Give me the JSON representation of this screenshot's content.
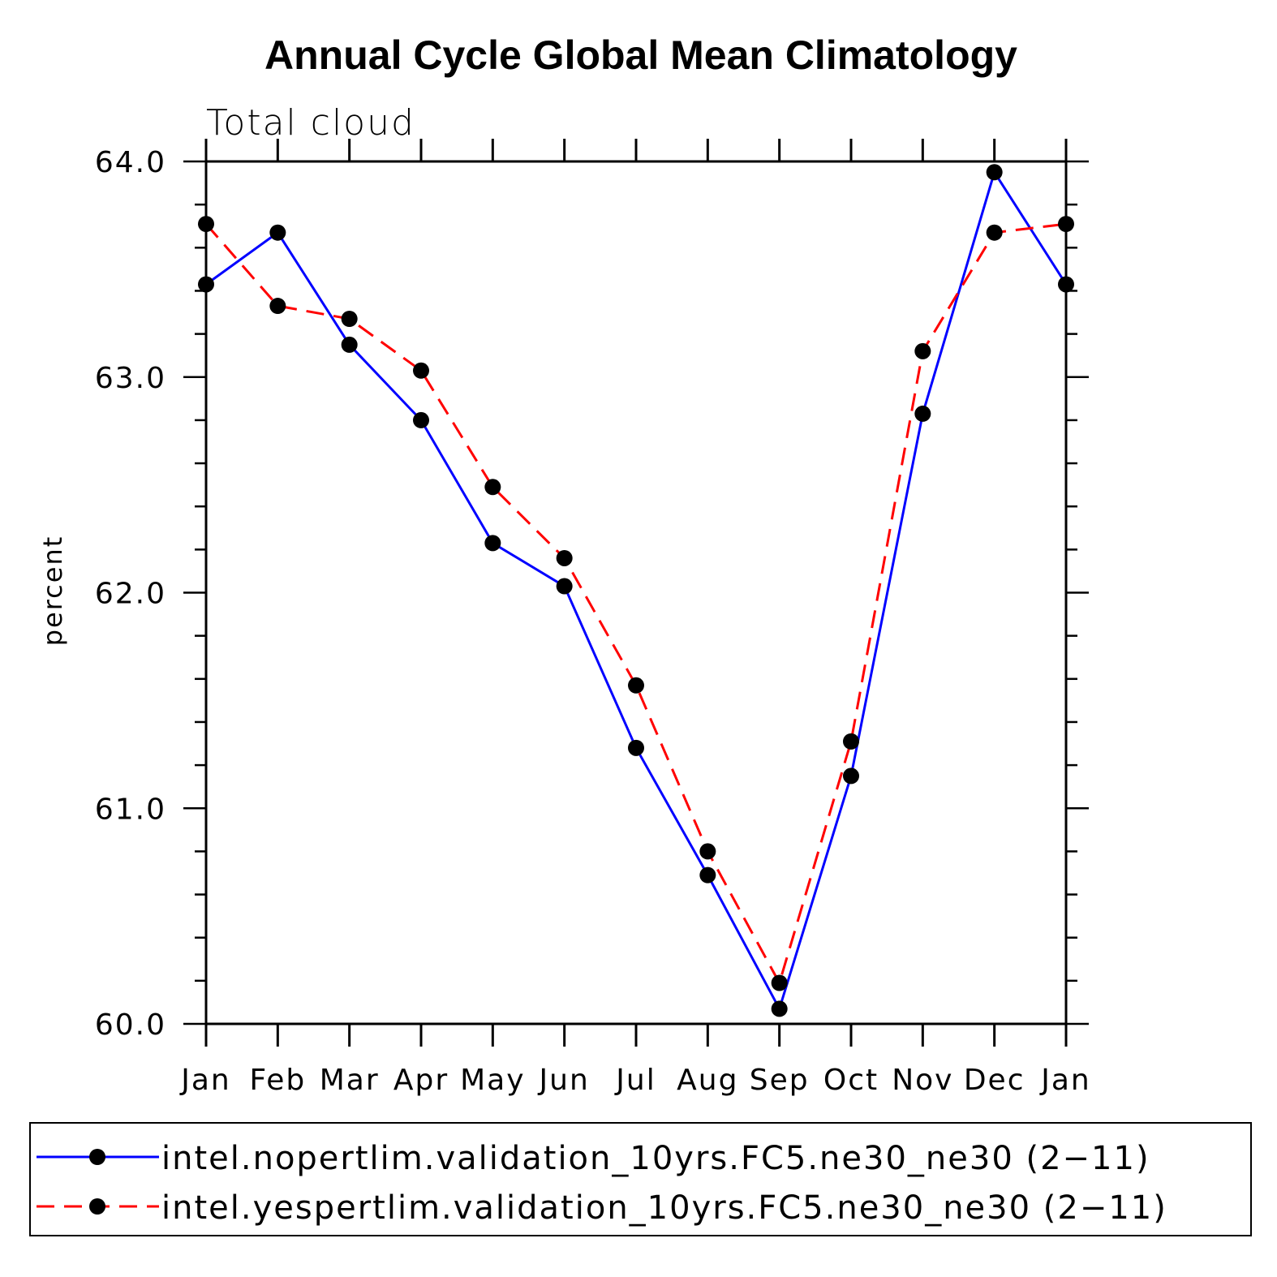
{
  "chart_data": {
    "type": "line",
    "title": "Annual Cycle Global Mean Climatology",
    "subtitle": "Total cloud",
    "xlabel": "",
    "ylabel": "percent",
    "categories": [
      "Jan",
      "Feb",
      "Mar",
      "Apr",
      "May",
      "Jun",
      "Jul",
      "Aug",
      "Sep",
      "Oct",
      "Nov",
      "Dec",
      "Jan"
    ],
    "ylim": [
      60.0,
      64.0
    ],
    "yticks": [
      "60.0",
      "61.0",
      "62.0",
      "63.0",
      "64.0"
    ],
    "grid": false,
    "legend_position": "bottom",
    "series": [
      {
        "name": "intel.nopertlim.validation_10yrs.FC5.ne30_ne30 (2−11)",
        "color": "#0000ff",
        "line_style": "solid",
        "values": [
          63.43,
          63.67,
          63.15,
          62.8,
          62.23,
          62.03,
          61.28,
          60.69,
          60.07,
          61.15,
          62.83,
          63.95,
          63.43
        ]
      },
      {
        "name": "intel.yespertlim.validation_10yrs.FC5.ne30_ne30 (2−11)",
        "color": "#ff0000",
        "line_style": "dashed",
        "values": [
          63.71,
          63.33,
          63.27,
          63.03,
          62.49,
          62.16,
          61.57,
          60.8,
          60.19,
          61.31,
          63.12,
          63.67,
          63.71
        ]
      }
    ]
  }
}
